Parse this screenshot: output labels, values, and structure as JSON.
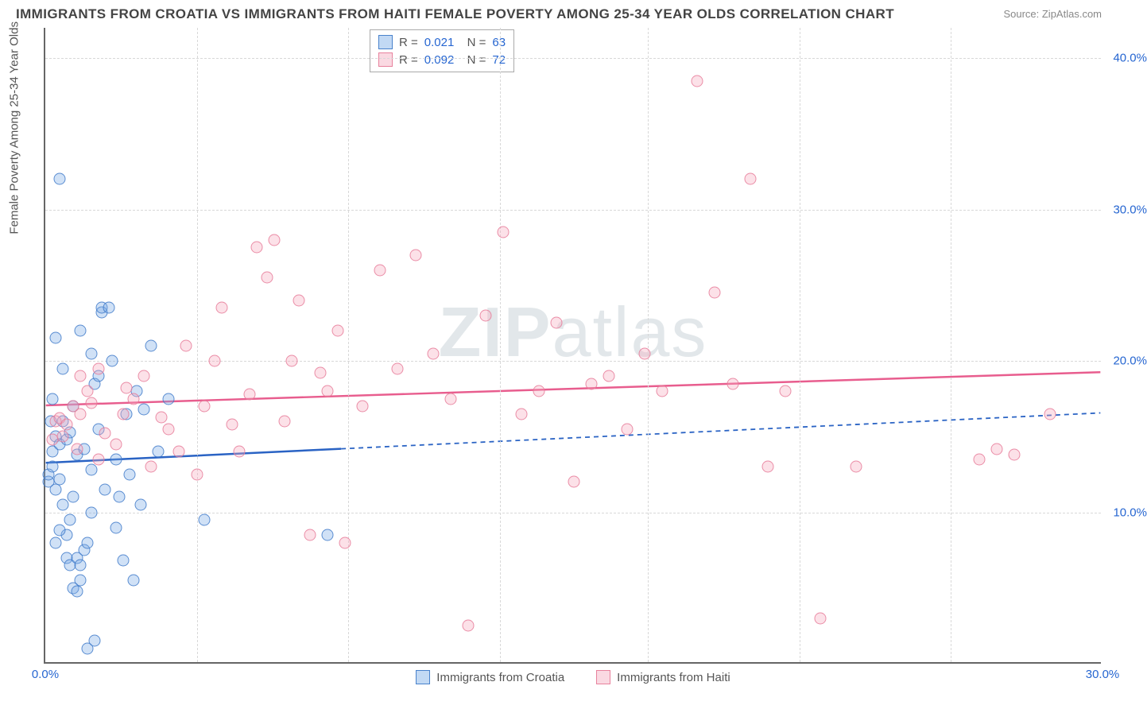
{
  "title": "IMMIGRANTS FROM CROATIA VS IMMIGRANTS FROM HAITI FEMALE POVERTY AMONG 25-34 YEAR OLDS CORRELATION CHART",
  "source": "Source: ZipAtlas.com",
  "ylabel": "Female Poverty Among 25-34 Year Olds",
  "watermark_a": "ZIP",
  "watermark_b": "atlas",
  "chart": {
    "type": "scatter",
    "xlim": [
      0,
      30
    ],
    "ylim": [
      0,
      42
    ],
    "x_ticks": [
      0,
      30
    ],
    "x_tick_labels": [
      "0.0%",
      "30.0%"
    ],
    "y_ticks": [
      10,
      20,
      30,
      40
    ],
    "y_tick_labels": [
      "10.0%",
      "20.0%",
      "30.0%",
      "40.0%"
    ],
    "x_minor_grid": [
      4.3,
      8.6,
      12.9,
      17.1,
      21.4,
      25.7
    ],
    "background_color": "#ffffff",
    "grid_color": "#d8d8d8",
    "axis_color": "#666666",
    "tick_label_color": "#2666d1",
    "series": [
      {
        "name": "Immigrants from Croatia",
        "class": "blue",
        "fill": "rgba(120,170,230,0.35)",
        "stroke": "rgba(60,120,200,0.8)",
        "line_color": "#2a63c4",
        "R": "0.021",
        "N": "63",
        "trend": {
          "x1": 0,
          "y1": 13.2,
          "x2": 30,
          "y2": 16.5,
          "solid_until_x": 8.4
        },
        "points": [
          [
            0.1,
            12.0
          ],
          [
            0.1,
            12.5
          ],
          [
            0.2,
            13.0
          ],
          [
            0.2,
            14.0
          ],
          [
            0.3,
            15.0
          ],
          [
            0.3,
            11.5
          ],
          [
            0.4,
            12.2
          ],
          [
            0.4,
            14.5
          ],
          [
            0.5,
            10.5
          ],
          [
            0.5,
            16.0
          ],
          [
            0.6,
            7.0
          ],
          [
            0.6,
            8.5
          ],
          [
            0.7,
            6.5
          ],
          [
            0.7,
            9.5
          ],
          [
            0.8,
            11.0
          ],
          [
            0.8,
            17.0
          ],
          [
            0.9,
            7.0
          ],
          [
            1.0,
            5.5
          ],
          [
            1.0,
            6.5
          ],
          [
            1.1,
            7.5
          ],
          [
            1.2,
            8.0
          ],
          [
            1.3,
            10.0
          ],
          [
            1.3,
            20.5
          ],
          [
            1.4,
            18.5
          ],
          [
            1.5,
            19.0
          ],
          [
            1.5,
            15.5
          ],
          [
            1.6,
            23.2
          ],
          [
            1.6,
            23.5
          ],
          [
            0.4,
            32.0
          ],
          [
            1.8,
            23.5
          ],
          [
            1.9,
            20.0
          ],
          [
            2.0,
            13.5
          ],
          [
            2.0,
            9.0
          ],
          [
            2.2,
            6.8
          ],
          [
            2.5,
            5.5
          ],
          [
            2.3,
            16.5
          ],
          [
            2.6,
            18.0
          ],
          [
            2.8,
            16.8
          ],
          [
            3.0,
            21.0
          ],
          [
            3.2,
            14.0
          ],
          [
            3.5,
            17.5
          ],
          [
            0.2,
            17.5
          ],
          [
            0.5,
            19.5
          ],
          [
            1.0,
            22.0
          ],
          [
            0.3,
            21.5
          ],
          [
            1.2,
            1.0
          ],
          [
            1.4,
            1.5
          ],
          [
            4.5,
            9.5
          ],
          [
            0.8,
            5.0
          ],
          [
            0.9,
            4.8
          ],
          [
            0.3,
            8.0
          ],
          [
            0.4,
            8.8
          ],
          [
            0.6,
            14.8
          ],
          [
            0.7,
            15.3
          ],
          [
            0.9,
            13.8
          ],
          [
            1.1,
            14.2
          ],
          [
            1.3,
            12.8
          ],
          [
            1.7,
            11.5
          ],
          [
            2.1,
            11.0
          ],
          [
            2.4,
            12.5
          ],
          [
            2.7,
            10.5
          ],
          [
            0.15,
            16.0
          ],
          [
            8.0,
            8.5
          ]
        ]
      },
      {
        "name": "Immigrants from Haiti",
        "class": "pink",
        "fill": "rgba(245,170,190,0.35)",
        "stroke": "rgba(230,120,150,0.8)",
        "line_color": "#e85d8e",
        "R": "0.092",
        "N": "72",
        "trend": {
          "x1": 0,
          "y1": 17.0,
          "x2": 30,
          "y2": 19.2,
          "solid_until_x": 30
        },
        "points": [
          [
            0.3,
            16.0
          ],
          [
            0.5,
            15.0
          ],
          [
            0.8,
            17.0
          ],
          [
            1.0,
            16.5
          ],
          [
            1.2,
            18.0
          ],
          [
            1.5,
            19.5
          ],
          [
            2.0,
            14.5
          ],
          [
            2.2,
            16.5
          ],
          [
            2.5,
            17.5
          ],
          [
            3.0,
            13.0
          ],
          [
            3.5,
            15.5
          ],
          [
            4.0,
            21.0
          ],
          [
            4.5,
            17.0
          ],
          [
            5.0,
            23.5
          ],
          [
            5.5,
            14.0
          ],
          [
            6.0,
            27.5
          ],
          [
            6.5,
            28.0
          ],
          [
            7.0,
            20.0
          ],
          [
            7.2,
            24.0
          ],
          [
            7.5,
            8.5
          ],
          [
            8.0,
            18.0
          ],
          [
            8.5,
            8.0
          ],
          [
            9.0,
            17.0
          ],
          [
            9.5,
            26.0
          ],
          [
            10.0,
            19.5
          ],
          [
            10.5,
            27.0
          ],
          [
            11.0,
            20.5
          ],
          [
            11.5,
            17.5
          ],
          [
            12.0,
            2.5
          ],
          [
            12.5,
            23.0
          ],
          [
            13.0,
            28.5
          ],
          [
            13.5,
            16.5
          ],
          [
            14.0,
            18.0
          ],
          [
            14.5,
            22.5
          ],
          [
            15.0,
            12.0
          ],
          [
            15.5,
            18.5
          ],
          [
            16.0,
            19.0
          ],
          [
            16.5,
            15.5
          ],
          [
            17.0,
            20.5
          ],
          [
            17.5,
            18.0
          ],
          [
            18.5,
            38.5
          ],
          [
            19.0,
            24.5
          ],
          [
            19.5,
            18.5
          ],
          [
            20.0,
            32.0
          ],
          [
            20.5,
            13.0
          ],
          [
            21.0,
            18.0
          ],
          [
            22.0,
            3.0
          ],
          [
            23.0,
            13.0
          ],
          [
            26.5,
            13.5
          ],
          [
            27.0,
            14.2
          ],
          [
            27.5,
            13.8
          ],
          [
            28.5,
            16.5
          ],
          [
            0.2,
            14.8
          ],
          [
            0.4,
            16.2
          ],
          [
            0.6,
            15.8
          ],
          [
            0.9,
            14.2
          ],
          [
            1.3,
            17.2
          ],
          [
            1.7,
            15.2
          ],
          [
            2.3,
            18.2
          ],
          [
            2.8,
            19.0
          ],
          [
            3.3,
            16.3
          ],
          [
            3.8,
            14.0
          ],
          [
            4.3,
            12.5
          ],
          [
            4.8,
            20.0
          ],
          [
            5.3,
            15.8
          ],
          [
            5.8,
            17.8
          ],
          [
            6.3,
            25.5
          ],
          [
            6.8,
            16.0
          ],
          [
            7.8,
            19.2
          ],
          [
            8.3,
            22.0
          ],
          [
            1.0,
            19.0
          ],
          [
            1.5,
            13.5
          ]
        ]
      }
    ],
    "bottom_legend": [
      {
        "class": "blue",
        "label": "Immigrants from Croatia"
      },
      {
        "class": "pink",
        "label": "Immigrants from Haiti"
      }
    ]
  }
}
